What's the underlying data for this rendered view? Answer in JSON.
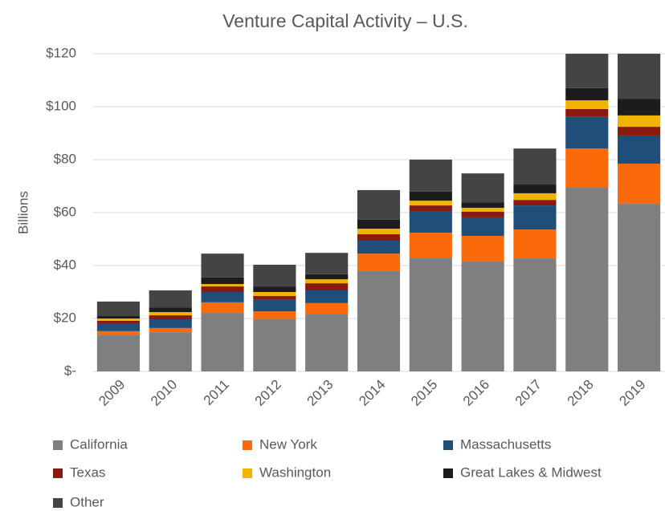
{
  "chart_data": {
    "type": "stacked_bar",
    "title": "Venture Capital Activity – U.S.",
    "y_label": "Billions",
    "categories": [
      "2009",
      "2010",
      "2011",
      "2012",
      "2013",
      "2014",
      "2015",
      "2016",
      "2017",
      "2018",
      "2019"
    ],
    "series": [
      {
        "name": "California",
        "color": "#7f7f7f",
        "values": [
          13.9,
          14.8,
          22.1,
          19.7,
          21.5,
          37.9,
          43,
          41.5,
          42.7,
          69.4,
          63.3
        ]
      },
      {
        "name": "New York",
        "color": "#fa6a0a",
        "values": [
          1.3,
          1.6,
          4.0,
          3.0,
          4.3,
          6.6,
          9.4,
          9.7,
          10.9,
          14.8,
          15.2
        ]
      },
      {
        "name": "Massachusetts",
        "color": "#1f4e79",
        "values": [
          2.7,
          3.3,
          3.9,
          4.3,
          4.8,
          4.9,
          8.2,
          7.0,
          9.1,
          11.9,
          10.6
        ]
      },
      {
        "name": "Texas",
        "color": "#8b1a0e",
        "values": [
          1.2,
          1.5,
          2.1,
          1.5,
          2.7,
          2.4,
          2.1,
          2.1,
          2.1,
          3.0,
          3.3
        ]
      },
      {
        "name": "Washington",
        "color": "#f0b400",
        "values": [
          0.9,
          1.2,
          0.9,
          1.5,
          1.5,
          2.1,
          1.8,
          1.5,
          2.5,
          3.3,
          4.3
        ]
      },
      {
        "name": "Great Lakes & Midwest",
        "color": "#1c1c1c",
        "values": [
          0.9,
          1.8,
          2.5,
          2.1,
          1.9,
          3.4,
          3.4,
          2.1,
          3.3,
          4.6,
          6.3
        ]
      },
      {
        "name": "Other",
        "color": "#444444",
        "values": [
          5.5,
          6.4,
          9.0,
          8.2,
          8.1,
          11.2,
          12.1,
          10.9,
          13.6,
          13,
          17
        ]
      }
    ],
    "ylim": [
      0,
      120
    ],
    "yticks": [
      {
        "value": 0,
        "label": "$-"
      },
      {
        "value": 20,
        "label": "$20"
      },
      {
        "value": 40,
        "label": "$40"
      },
      {
        "value": 60,
        "label": "$60"
      },
      {
        "value": 80,
        "label": "$80"
      },
      {
        "value": 100,
        "label": "$100"
      },
      {
        "value": 120,
        "label": "$120"
      }
    ],
    "grid": true,
    "legend": "bottom"
  }
}
